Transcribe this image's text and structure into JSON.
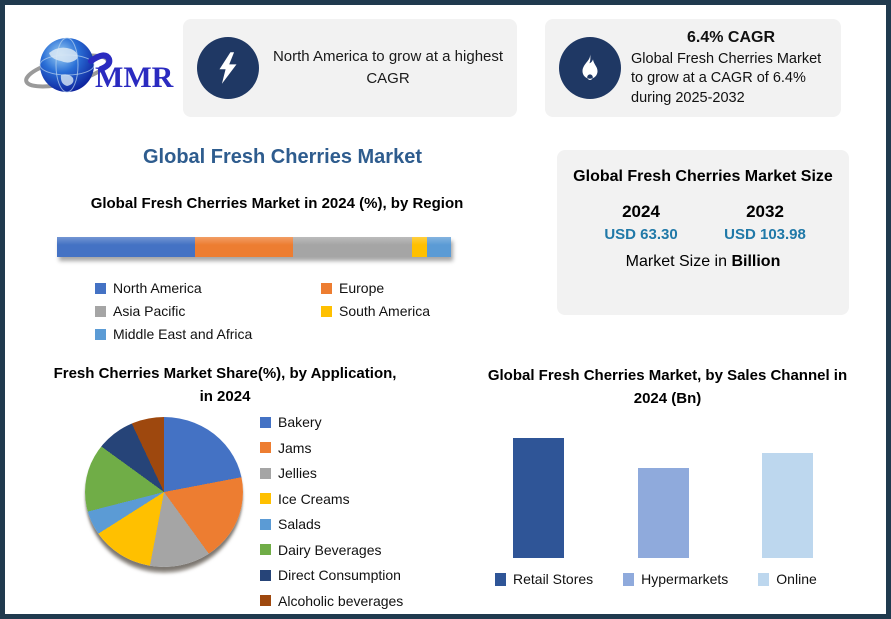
{
  "logo": {
    "text": "MMR"
  },
  "highlight_left": {
    "icon": "lightning-bolt",
    "text": "North America to grow at a highest CAGR"
  },
  "highlight_right": {
    "icon": "flame",
    "title": "6.4% CAGR",
    "text": "Global Fresh Cherries Market to grow at a CAGR of 6.4% during 2025-2032"
  },
  "main_title": "Global Fresh Cherries Market",
  "market_size": {
    "title": "Global Fresh Cherries Market Size",
    "years": [
      {
        "year": "2024",
        "value": "USD 63.30"
      },
      {
        "year": "2032",
        "value": "USD 103.98"
      }
    ],
    "footnote_prefix": "Market Size in ",
    "footnote_bold": "Billion"
  },
  "colors": {
    "frame_border": "#203A4E",
    "panel_bg": "#F2F2F2",
    "icon_circle": "#1F3864",
    "main_title": "#2E5C8E",
    "usd_value": "#2079A8"
  },
  "chart_data": [
    {
      "id": "region_share",
      "type": "bar",
      "variant": "horizontal-stacked",
      "title": "Global Fresh Cherries Market in 2024 (%), by Region",
      "categories": [
        "North America",
        "Europe",
        "Asia Pacific",
        "South America",
        "Middle East and Africa"
      ],
      "values": [
        35,
        25,
        30,
        4,
        6
      ],
      "unit": "%",
      "colors": [
        "#4472C4",
        "#ED7D31",
        "#A5A5A5",
        "#FFC000",
        "#5B9BD5"
      ],
      "legend_position": "bottom",
      "axis_labels_shown": false
    },
    {
      "id": "application_share",
      "type": "pie",
      "title": "Fresh Cherries Market Share(%), by Application, in 2024",
      "categories": [
        "Bakery",
        "Jams",
        "Jellies",
        "Ice Creams",
        "Salads",
        "Dairy Beverages",
        "Direct Consumption",
        "Alcoholic beverages"
      ],
      "values": [
        22,
        18,
        13,
        13,
        5,
        14,
        8,
        7
      ],
      "unit": "%",
      "colors": [
        "#4472C4",
        "#ED7D31",
        "#A5A5A5",
        "#FFC000",
        "#5B9BD5",
        "#70AD47",
        "#264478",
        "#9E480E"
      ],
      "legend_position": "right",
      "start_angle_deg": 0,
      "data_labels_shown": false
    },
    {
      "id": "sales_channel",
      "type": "bar",
      "variant": "vertical",
      "title": "Global Fresh Cherries Market, by Sales Channel in 2024 (Bn)",
      "categories": [
        "Retail Stores",
        "Hypermarkets",
        "Online"
      ],
      "values": [
        120,
        90,
        105
      ],
      "unit": "relative-bar-height-px (no value axis shown in source)",
      "colors": [
        "#2F5597",
        "#8FAADC",
        "#BDD7EE"
      ],
      "legend_position": "bottom",
      "axis_labels_shown": false
    }
  ]
}
